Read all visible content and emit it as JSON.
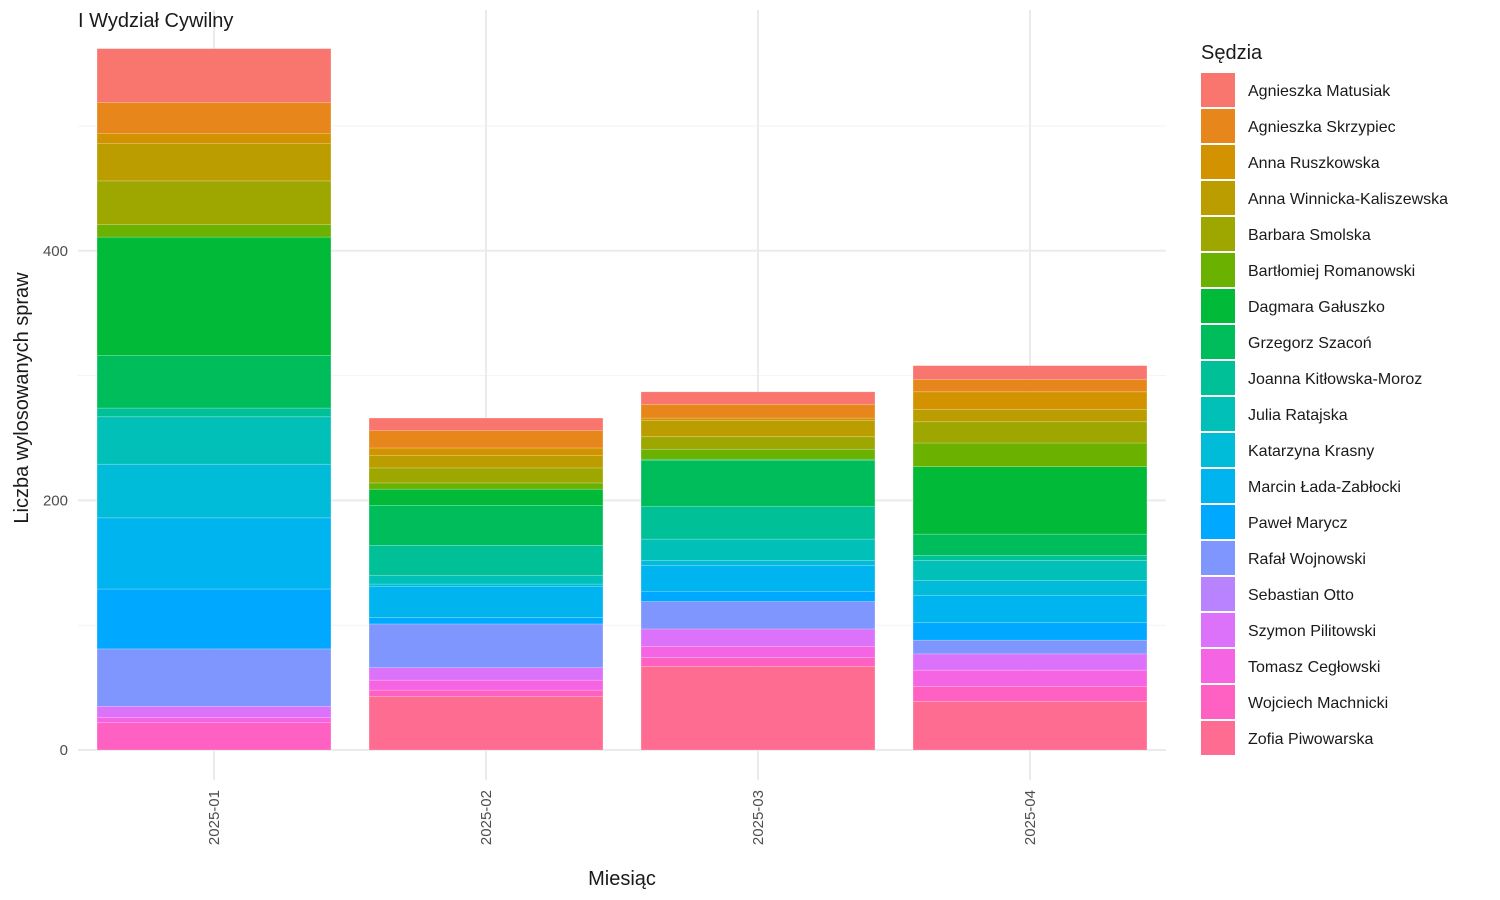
{
  "chart_data": {
    "type": "bar",
    "stacked": true,
    "title": "I Wydział Cywilny",
    "xlabel": "Miesiąc",
    "ylabel": "Liczba wylosowanych spraw",
    "ylim": [
      -24,
      590
    ],
    "yticks": [
      0,
      200,
      400
    ],
    "grid": true,
    "legend_title": "Sędzia",
    "legend_position": "right",
    "categories": [
      "2025-01",
      "2025-02",
      "2025-03",
      "2025-04"
    ],
    "series": [
      {
        "name": "Zofia Piwowarska",
        "color": "#FF6C91",
        "values": [
          0,
          43,
          67,
          39
        ]
      },
      {
        "name": "Wojciech Machnicki",
        "color": "#FF61C3",
        "values": [
          22,
          5,
          7,
          12
        ]
      },
      {
        "name": "Tomasz Cegłowski",
        "color": "#F564E3",
        "values": [
          4,
          8,
          9,
          13
        ]
      },
      {
        "name": "Szymon Pilitowski",
        "color": "#DC71FA",
        "values": [
          9,
          10,
          14,
          13
        ]
      },
      {
        "name": "Sebastian Otto",
        "color": "#B983FF",
        "values": [
          0,
          0,
          0,
          0
        ]
      },
      {
        "name": "Rafał Wojnowski",
        "color": "#7F96FF",
        "values": [
          46,
          35,
          22,
          11
        ]
      },
      {
        "name": "Paweł Marycz",
        "color": "#00A9FF",
        "values": [
          48,
          5,
          8,
          14
        ]
      },
      {
        "name": "Marcin Łada-Zabłocki",
        "color": "#00B4EF",
        "values": [
          57,
          25,
          21,
          22
        ]
      },
      {
        "name": "Katarzyna Krasny",
        "color": "#00BCD8",
        "values": [
          43,
          2,
          4,
          12
        ]
      },
      {
        "name": "Julia Ratajska",
        "color": "#00C0B8",
        "values": [
          38,
          7,
          17,
          16
        ]
      },
      {
        "name": "Joanna Kitłowska-Moroz",
        "color": "#00C097",
        "values": [
          7,
          24,
          26,
          4
        ]
      },
      {
        "name": "Grzegorz Szacoń",
        "color": "#00BD5C",
        "values": [
          42,
          32,
          37,
          17
        ]
      },
      {
        "name": "Dagmara Gałuszko",
        "color": "#00BA38",
        "values": [
          95,
          13,
          1,
          54
        ]
      },
      {
        "name": "Bartłomiej Romanowski",
        "color": "#6BB100",
        "values": [
          10,
          5,
          8,
          19
        ]
      },
      {
        "name": "Barbara Smolska",
        "color": "#9DA700",
        "values": [
          35,
          12,
          10,
          17
        ]
      },
      {
        "name": "Anna Winnicka-Kaliszewska",
        "color": "#BB9D00",
        "values": [
          30,
          10,
          13,
          10
        ]
      },
      {
        "name": "Anna Ruszkowska",
        "color": "#D39200",
        "values": [
          8,
          6,
          2,
          14
        ]
      },
      {
        "name": "Agnieszka Skrzypiec",
        "color": "#E7861B",
        "values": [
          25,
          14,
          11,
          10
        ]
      },
      {
        "name": "Agnieszka Matusiak",
        "color": "#F8766D",
        "values": [
          43,
          10,
          10,
          11
        ]
      }
    ]
  }
}
